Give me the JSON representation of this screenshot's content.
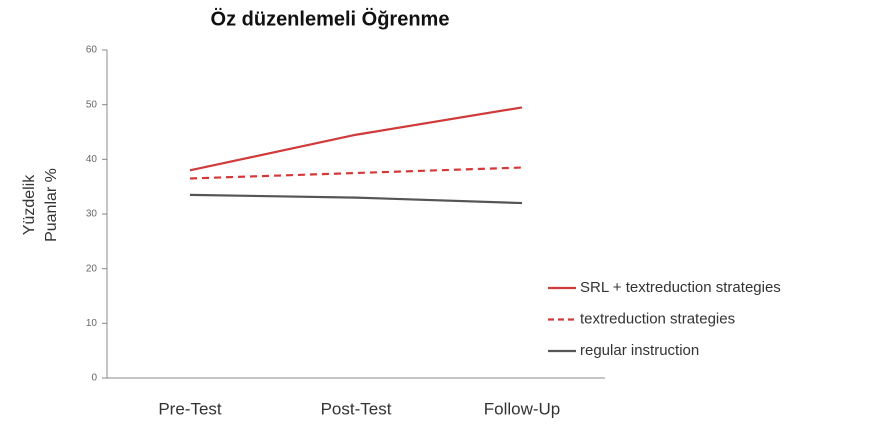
{
  "chart_data": {
    "type": "line",
    "title": "Öz düzenlemeli Öğrenme",
    "y_label": [
      "Yüzdelik",
      "Puanlar %"
    ],
    "categories": [
      "Pre-Test",
      "Post-Test",
      "Follow-Up"
    ],
    "series": [
      {
        "name": "SRL + textreduction strategies",
        "color": "#d03a3a",
        "dashed": false,
        "values": [
          38,
          44.5,
          49.5
        ]
      },
      {
        "name": "textreduction strategies",
        "color": "#d03a3a",
        "dashed": true,
        "values": [
          36.5,
          37.5,
          38.5
        ]
      },
      {
        "name": "regular instruction",
        "color": "#555555",
        "dashed": false,
        "values": [
          33.5,
          33,
          32
        ]
      }
    ],
    "ylim": [
      0,
      60
    ],
    "yticks": [
      0,
      10,
      20,
      30,
      40,
      50,
      60
    ],
    "grid": false,
    "legend": "right"
  }
}
